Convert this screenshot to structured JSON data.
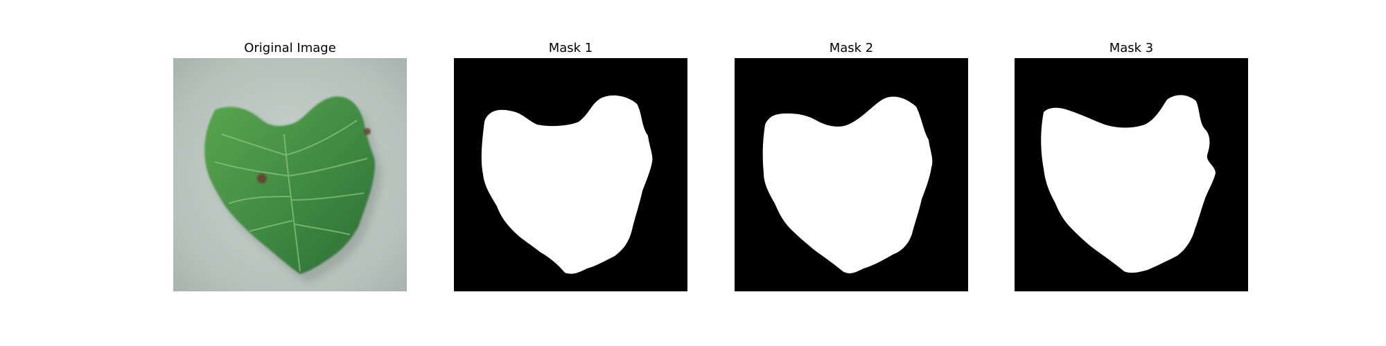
{
  "figure": {
    "panels": [
      {
        "title": "Original Image",
        "kind": "photo"
      },
      {
        "title": "Mask 1",
        "kind": "mask"
      },
      {
        "title": "Mask 2",
        "kind": "mask"
      },
      {
        "title": "Mask 3",
        "kind": "mask"
      }
    ]
  },
  "colors": {
    "background": "#ffffff",
    "mask_background": "#000000",
    "mask_foreground": "#ffffff",
    "paper": "#b9c4bf",
    "leaf_dark": "#2f6f34",
    "leaf_mid": "#4e9a4a",
    "leaf_light": "#7dbb6a",
    "lesion": "#6b3a2e"
  },
  "icons": {
    "photo": "leaf-photo",
    "mask": "leaf-mask"
  }
}
